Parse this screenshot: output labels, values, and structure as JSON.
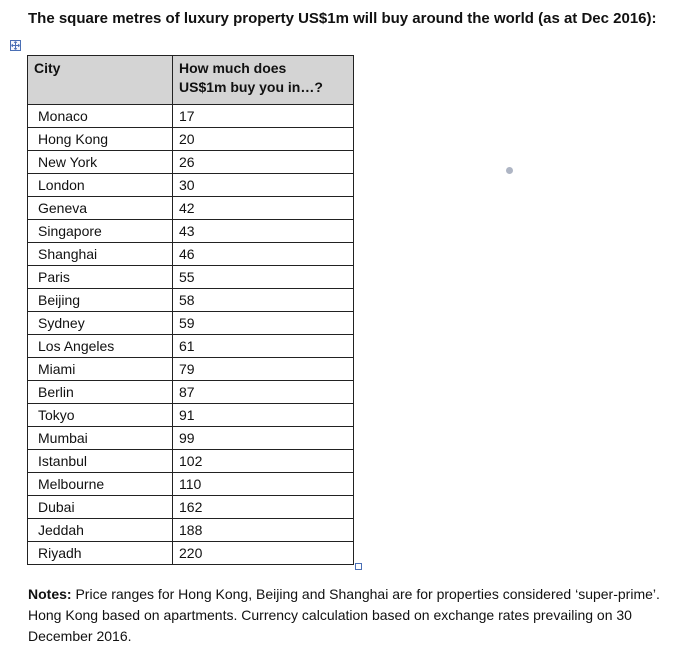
{
  "document": {
    "title": "The square metres of luxury property US$1m will buy around the world (as at Dec 2016):"
  },
  "table": {
    "headers": {
      "city": "City",
      "value_line1": "How much does",
      "value_line2": "US$1m buy you in…?"
    },
    "rows": [
      {
        "city": "Monaco",
        "value": "17"
      },
      {
        "city": "Hong Kong",
        "value": "20"
      },
      {
        "city": "New York",
        "value": "26"
      },
      {
        "city": "London",
        "value": "30"
      },
      {
        "city": "Geneva",
        "value": "42"
      },
      {
        "city": "Singapore",
        "value": "43"
      },
      {
        "city": "Shanghai",
        "value": "46"
      },
      {
        "city": "Paris",
        "value": "55"
      },
      {
        "city": "Beijing",
        "value": "58"
      },
      {
        "city": "Sydney",
        "value": "59"
      },
      {
        "city": "Los Angeles",
        "value": "61"
      },
      {
        "city": "Miami",
        "value": "79"
      },
      {
        "city": "Berlin",
        "value": "87"
      },
      {
        "city": "Tokyo",
        "value": "91"
      },
      {
        "city": "Mumbai",
        "value": "99"
      },
      {
        "city": "Istanbul",
        "value": "102"
      },
      {
        "city": "Melbourne",
        "value": "110"
      },
      {
        "city": "Dubai",
        "value": "162"
      },
      {
        "city": "Jeddah",
        "value": "188"
      },
      {
        "city": "Riyadh",
        "value": "220"
      }
    ]
  },
  "notes": {
    "label": "Notes:",
    "text": " Price ranges for Hong Kong, Beijing and Shanghai are for properties considered ‘super-prime’. Hong Kong based on apartments. Currency calculation based on exchange rates prevailing on 30 December 2016."
  },
  "icons": {
    "move_handle": "table-move-icon",
    "resize_handle": "table-resize-icon"
  },
  "colors": {
    "header_bg": "#d4d4d4",
    "border": "#222222",
    "handle": "#4a6fb5"
  }
}
